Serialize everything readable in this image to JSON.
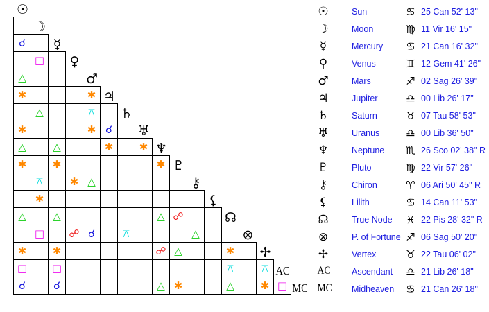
{
  "aspect_styles": {
    "conjunction": {
      "symbol": "☌",
      "color": "#1010dd"
    },
    "opposition": {
      "symbol": "☍",
      "color": "#ee1111"
    },
    "trine": {
      "symbol": "△",
      "color": "#11cc11"
    },
    "square": {
      "symbol": "□",
      "color": "#ee11ee"
    },
    "sextile": {
      "symbol": "✱",
      "color": "#ff8800"
    },
    "quincunx": {
      "symbol": "⚻",
      "color": "#11dddd"
    }
  },
  "planets": [
    {
      "glyph": "☉",
      "icon": "sun-icon",
      "name": "Sun",
      "sign_glyph": "♋",
      "sign_icon": "cancer-icon",
      "position": "25 Can 52' 13\""
    },
    {
      "glyph": "☽",
      "icon": "moon-icon",
      "name": "Moon",
      "sign_glyph": "♍",
      "sign_icon": "virgo-icon",
      "position": "11 Vir 16' 15\""
    },
    {
      "glyph": "☿",
      "icon": "mercury-icon",
      "name": "Mercury",
      "sign_glyph": "♋",
      "sign_icon": "cancer-icon",
      "position": "21 Can 16' 32\""
    },
    {
      "glyph": "♀",
      "icon": "venus-icon",
      "name": "Venus",
      "sign_glyph": "♊",
      "sign_icon": "gemini-icon",
      "position": "12 Gem 41' 26\""
    },
    {
      "glyph": "♂",
      "icon": "mars-icon",
      "name": "Mars",
      "sign_glyph": "♐",
      "sign_icon": "sagittarius-icon",
      "position": "02 Sag 26' 39\""
    },
    {
      "glyph": "♃",
      "icon": "jupiter-icon",
      "name": "Jupiter",
      "sign_glyph": "♎",
      "sign_icon": "libra-icon",
      "position": "00 Lib 26' 17\""
    },
    {
      "glyph": "♄",
      "icon": "saturn-icon",
      "name": "Saturn",
      "sign_glyph": "♉",
      "sign_icon": "taurus-icon",
      "position": "07 Tau 58' 53\""
    },
    {
      "glyph": "♅",
      "icon": "uranus-icon",
      "name": "Uranus",
      "sign_glyph": "♎",
      "sign_icon": "libra-icon",
      "position": "00 Lib 36' 50\""
    },
    {
      "glyph": "♆",
      "icon": "neptune-icon",
      "name": "Neptune",
      "sign_glyph": "♏",
      "sign_icon": "scorpio-icon",
      "position": "26 Sco 02' 38\" R"
    },
    {
      "glyph": "♇",
      "icon": "pluto-icon",
      "name": "Pluto",
      "sign_glyph": "♍",
      "sign_icon": "virgo-icon",
      "position": "22 Vir 57' 26\""
    },
    {
      "glyph": "⚷",
      "icon": "chiron-icon",
      "name": "Chiron",
      "sign_glyph": "♈",
      "sign_icon": "aries-icon",
      "position": "06 Ari 50' 45\" R"
    },
    {
      "glyph": "⚸",
      "icon": "lilith-icon",
      "name": "Lilith",
      "sign_glyph": "♋",
      "sign_icon": "cancer-icon",
      "position": "14 Can 11' 53\""
    },
    {
      "glyph": "☊",
      "icon": "true-node-icon",
      "name": "True Node",
      "sign_glyph": "♓",
      "sign_icon": "pisces-icon",
      "position": "22 Pis 28' 32\" R"
    },
    {
      "glyph": "⊗",
      "icon": "part-of-fortune-icon",
      "name": "P. of Fortune",
      "sign_glyph": "♐",
      "sign_icon": "sagittarius-icon",
      "position": "06 Sag 50' 20\""
    },
    {
      "glyph": "✢",
      "icon": "vertex-icon",
      "name": "Vertex",
      "sign_glyph": "♉",
      "sign_icon": "taurus-icon",
      "position": "22 Tau 06' 02\""
    },
    {
      "glyph": "AC",
      "icon": "ascendant-icon",
      "name": "Ascendant",
      "sign_glyph": "♎",
      "sign_icon": "libra-icon",
      "position": "21 Lib 26' 18\""
    },
    {
      "glyph": "MC",
      "icon": "midheaven-icon",
      "name": "Midheaven",
      "sign_glyph": "♋",
      "sign_icon": "cancer-icon",
      "position": "21 Can 26' 18\""
    }
  ],
  "aspect_grid": [
    [],
    [
      ""
    ],
    [
      "conjunction",
      ""
    ],
    [
      "",
      "square",
      ""
    ],
    [
      "trine",
      "",
      "",
      ""
    ],
    [
      "sextile",
      "",
      "",
      "",
      "sextile"
    ],
    [
      "",
      "trine",
      "",
      "",
      "quincunx",
      ""
    ],
    [
      "sextile",
      "",
      "",
      "",
      "sextile",
      "conjunction",
      ""
    ],
    [
      "trine",
      "",
      "trine",
      "",
      "",
      "sextile",
      "",
      "sextile"
    ],
    [
      "sextile",
      "",
      "sextile",
      "",
      "",
      "",
      "",
      "",
      "sextile"
    ],
    [
      "",
      "quincunx",
      "",
      "sextile",
      "trine",
      "",
      "",
      "",
      "",
      ""
    ],
    [
      "",
      "sextile",
      "",
      "",
      "",
      "",
      "",
      "",
      "",
      "",
      ""
    ],
    [
      "trine",
      "",
      "trine",
      "",
      "",
      "",
      "",
      "",
      "trine",
      "opposition",
      "",
      ""
    ],
    [
      "",
      "square",
      "",
      "opposition",
      "conjunction",
      "",
      "quincunx",
      "",
      "",
      "",
      "trine",
      "",
      ""
    ],
    [
      "sextile",
      "",
      "sextile",
      "",
      "",
      "",
      "",
      "",
      "opposition",
      "trine",
      "",
      "",
      "sextile",
      ""
    ],
    [
      "square",
      "",
      "square",
      "",
      "",
      "",
      "",
      "",
      "",
      "",
      "",
      "",
      "quincunx",
      "",
      "quincunx"
    ],
    [
      "conjunction",
      "",
      "conjunction",
      "",
      "",
      "",
      "",
      "",
      "trine",
      "sextile",
      "",
      "",
      "trine",
      "",
      "sextile",
      "square"
    ]
  ]
}
